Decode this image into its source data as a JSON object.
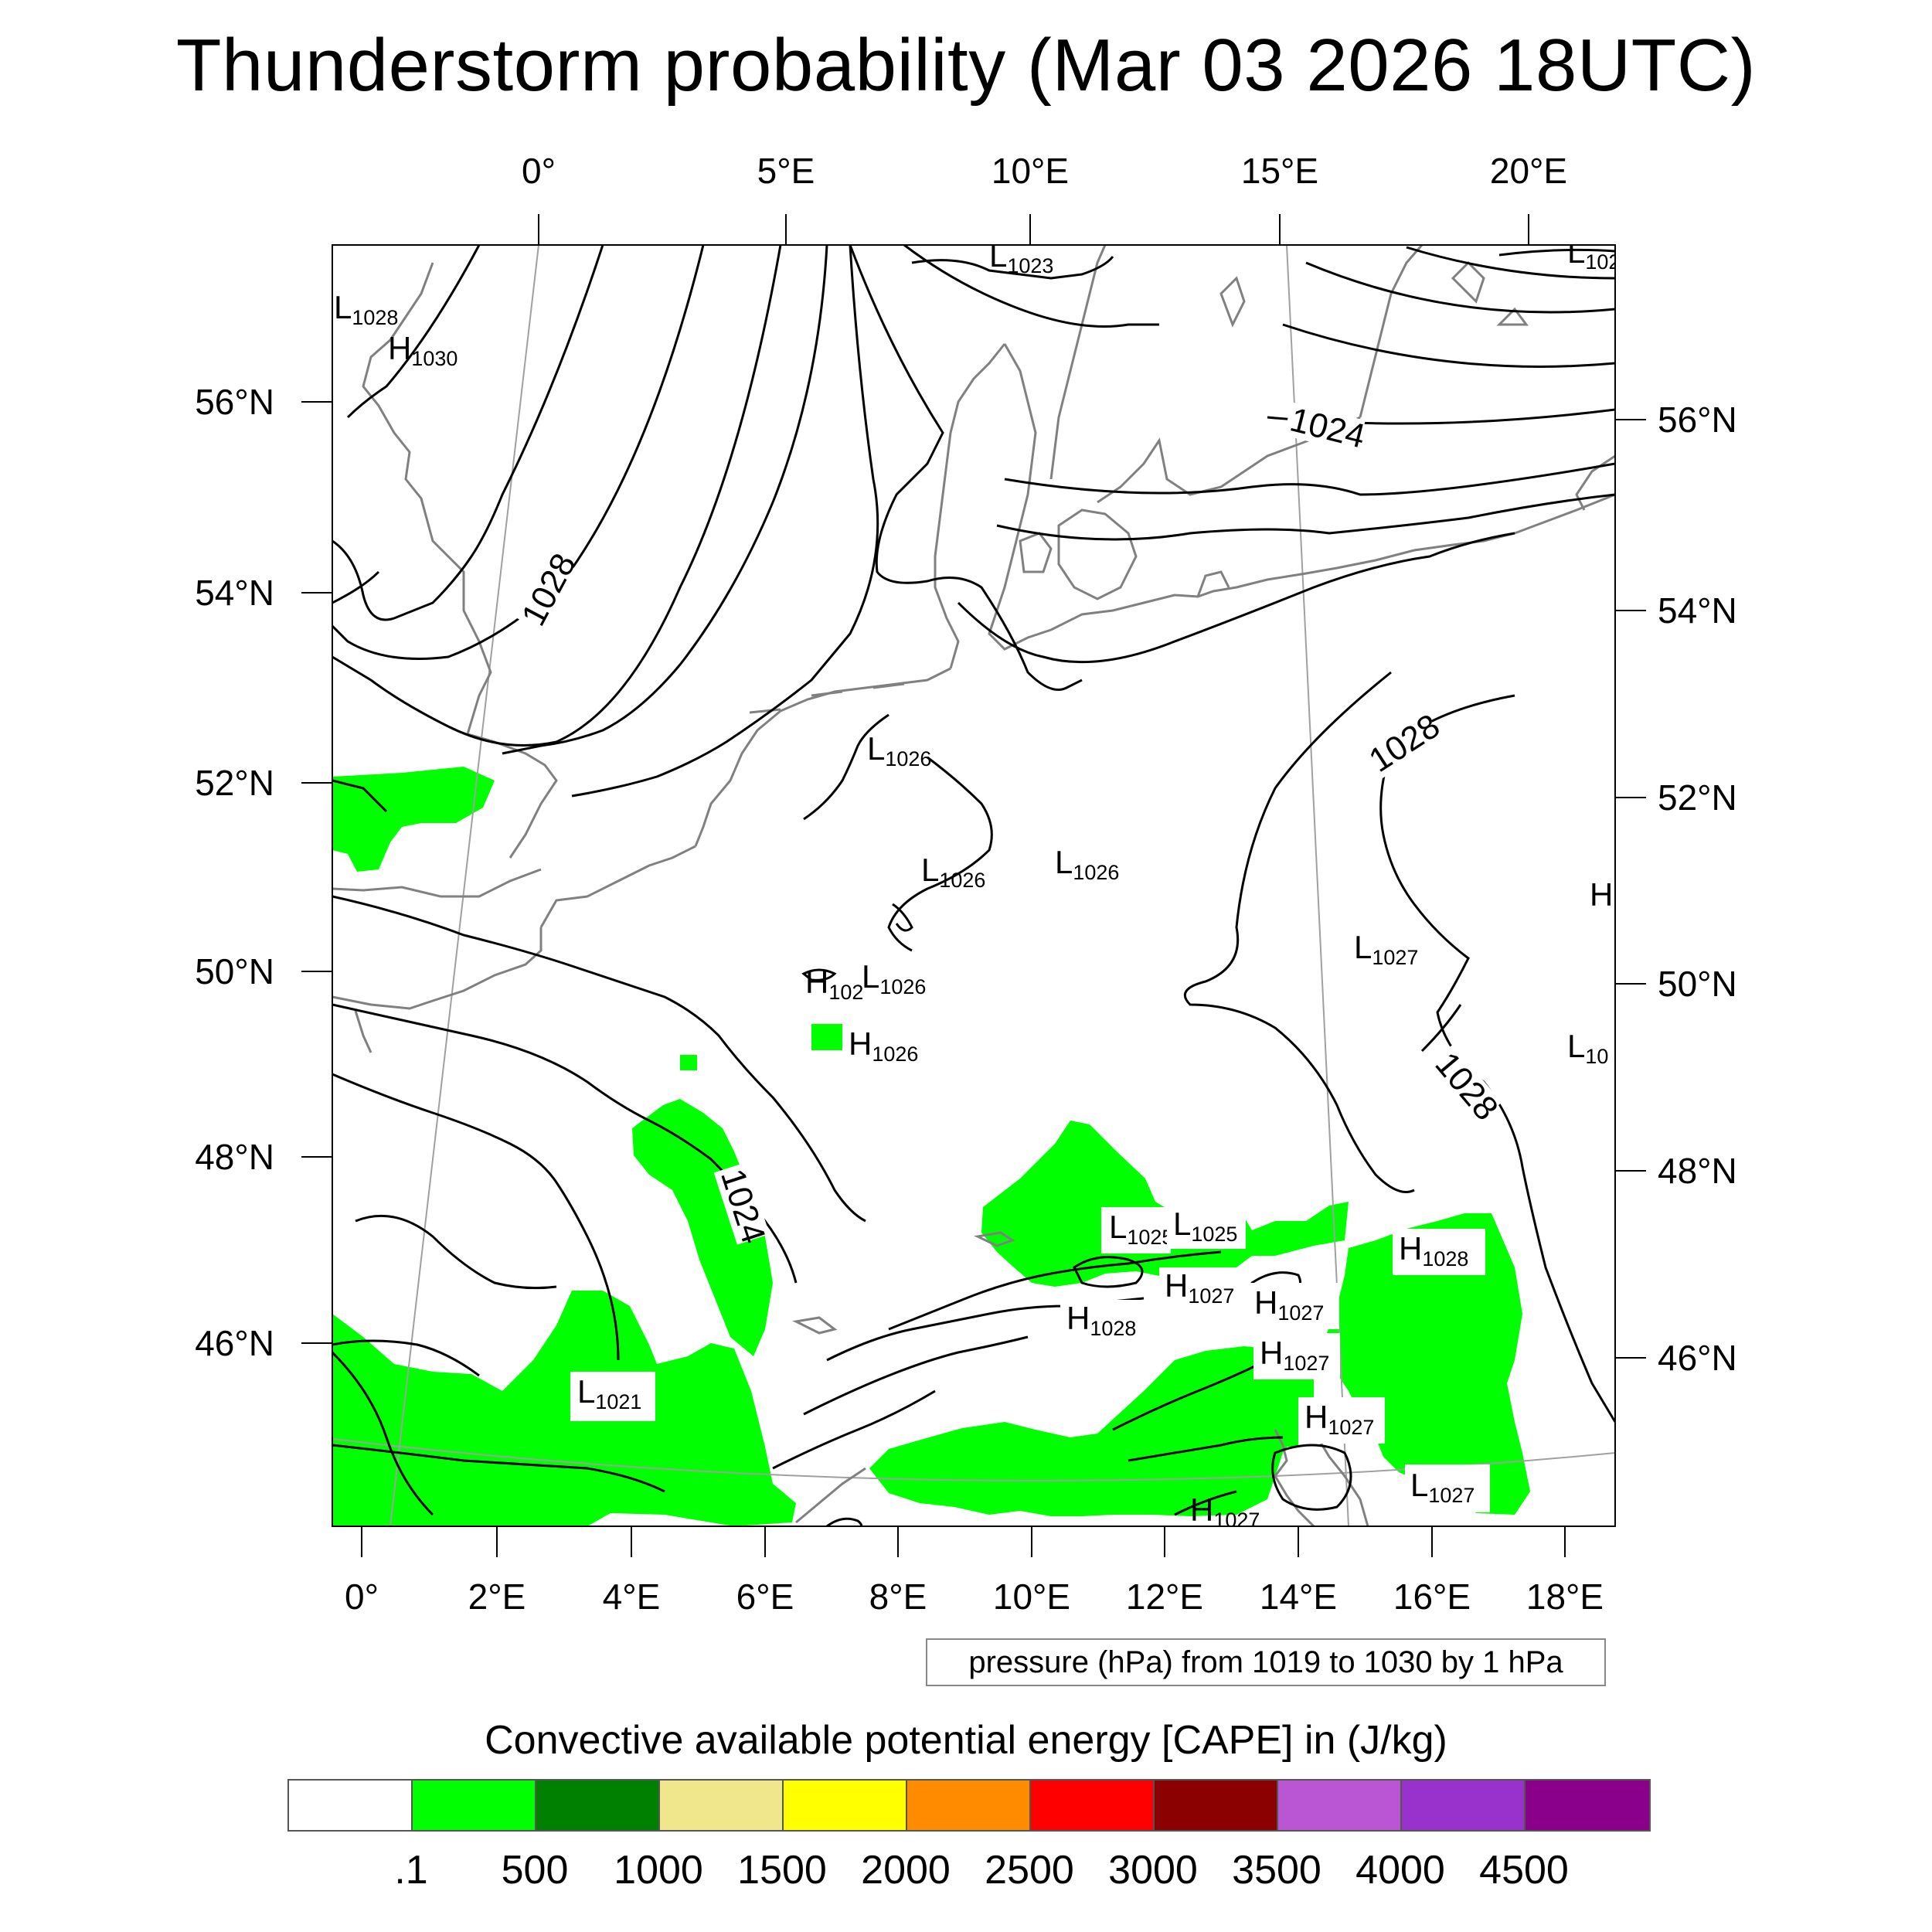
{
  "title": "Thunderstorm probability (Mar 03 2026 18UTC)",
  "top_lon_labels": [
    "0°",
    "5°E",
    "10°E",
    "15°E",
    "20°E"
  ],
  "bottom_lon_labels": [
    "0°",
    "2°E",
    "4°E",
    "6°E",
    "8°E",
    "10°E",
    "12°E",
    "14°E",
    "16°E",
    "18°E"
  ],
  "left_lat_labels": [
    "56°N",
    "54°N",
    "52°N",
    "50°N",
    "48°N",
    "46°N"
  ],
  "right_lat_labels": [
    "56°N",
    "54°N",
    "52°N",
    "50°N",
    "48°N",
    "46°N"
  ],
  "isobar_labels": [
    "1028",
    "1024",
    "1028",
    "1028",
    "1024"
  ],
  "pressure_marks": [
    {
      "type": "L",
      "value": "1023"
    },
    {
      "type": "L",
      "value": "102"
    },
    {
      "type": "L",
      "value": "1028"
    },
    {
      "type": "H",
      "value": "1030"
    },
    {
      "type": "L",
      "value": "1026"
    },
    {
      "type": "L",
      "value": "1026"
    },
    {
      "type": "L",
      "value": "1026"
    },
    {
      "type": "H",
      "value": ""
    },
    {
      "type": "L",
      "value": "1027"
    },
    {
      "type": "H",
      "value": "102"
    },
    {
      "type": "L",
      "value": "1026"
    },
    {
      "type": "H",
      "value": "1026"
    },
    {
      "type": "L",
      "value": "10"
    },
    {
      "type": "L",
      "value": "1025"
    },
    {
      "type": "L",
      "value": "1025"
    },
    {
      "type": "H",
      "value": "1028"
    },
    {
      "type": "H",
      "value": "1027"
    },
    {
      "type": "H",
      "value": "1027"
    },
    {
      "type": "H",
      "value": "1028"
    },
    {
      "type": "H",
      "value": "1027"
    },
    {
      "type": "L",
      "value": "1021"
    },
    {
      "type": "H",
      "value": "1027"
    },
    {
      "type": "L",
      "value": "1027"
    },
    {
      "type": "H",
      "value": "1027"
    }
  ],
  "contour_info": "pressure (hPa) from 1019 to 1030 by 1 hPa",
  "colorbar": {
    "title": "Convective available potential energy [CAPE] in (J/kg)",
    "colors": [
      "#ffffff",
      "#00ff00",
      "#008000",
      "#f0e68c",
      "#ffff00",
      "#ff8c00",
      "#ff0000",
      "#8b0000",
      "#ba55d3",
      "#9932cc",
      "#8b008b"
    ],
    "labels": [
      ".1",
      "500",
      "1000",
      "1500",
      "2000",
      "2500",
      "3000",
      "3500",
      "4000",
      "4500"
    ]
  },
  "colors": {
    "cape_green": "#00ff00",
    "coastline": "#808080",
    "isobar": "#000000",
    "graticule": "#a0a0a0"
  }
}
